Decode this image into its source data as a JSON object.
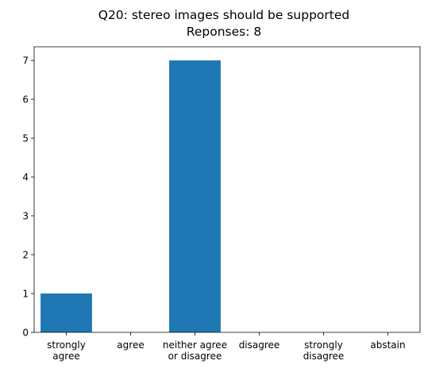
{
  "chart_data": {
    "type": "bar",
    "title": "Q20: stereo images should be supported",
    "subtitle": "Reponses: 8",
    "categories": [
      [
        "strongly",
        "agree"
      ],
      [
        "agree"
      ],
      [
        "neither agree",
        "or disagree"
      ],
      [
        "disagree"
      ],
      [
        "strongly",
        "disagree"
      ],
      [
        "abstain"
      ]
    ],
    "values": [
      1,
      0,
      7,
      0,
      0,
      0
    ],
    "y_ticks": [
      0,
      1,
      2,
      3,
      4,
      5,
      6,
      7
    ],
    "ylim": [
      0,
      7.35
    ],
    "grid": false,
    "bar_color": "#1f77b4"
  }
}
